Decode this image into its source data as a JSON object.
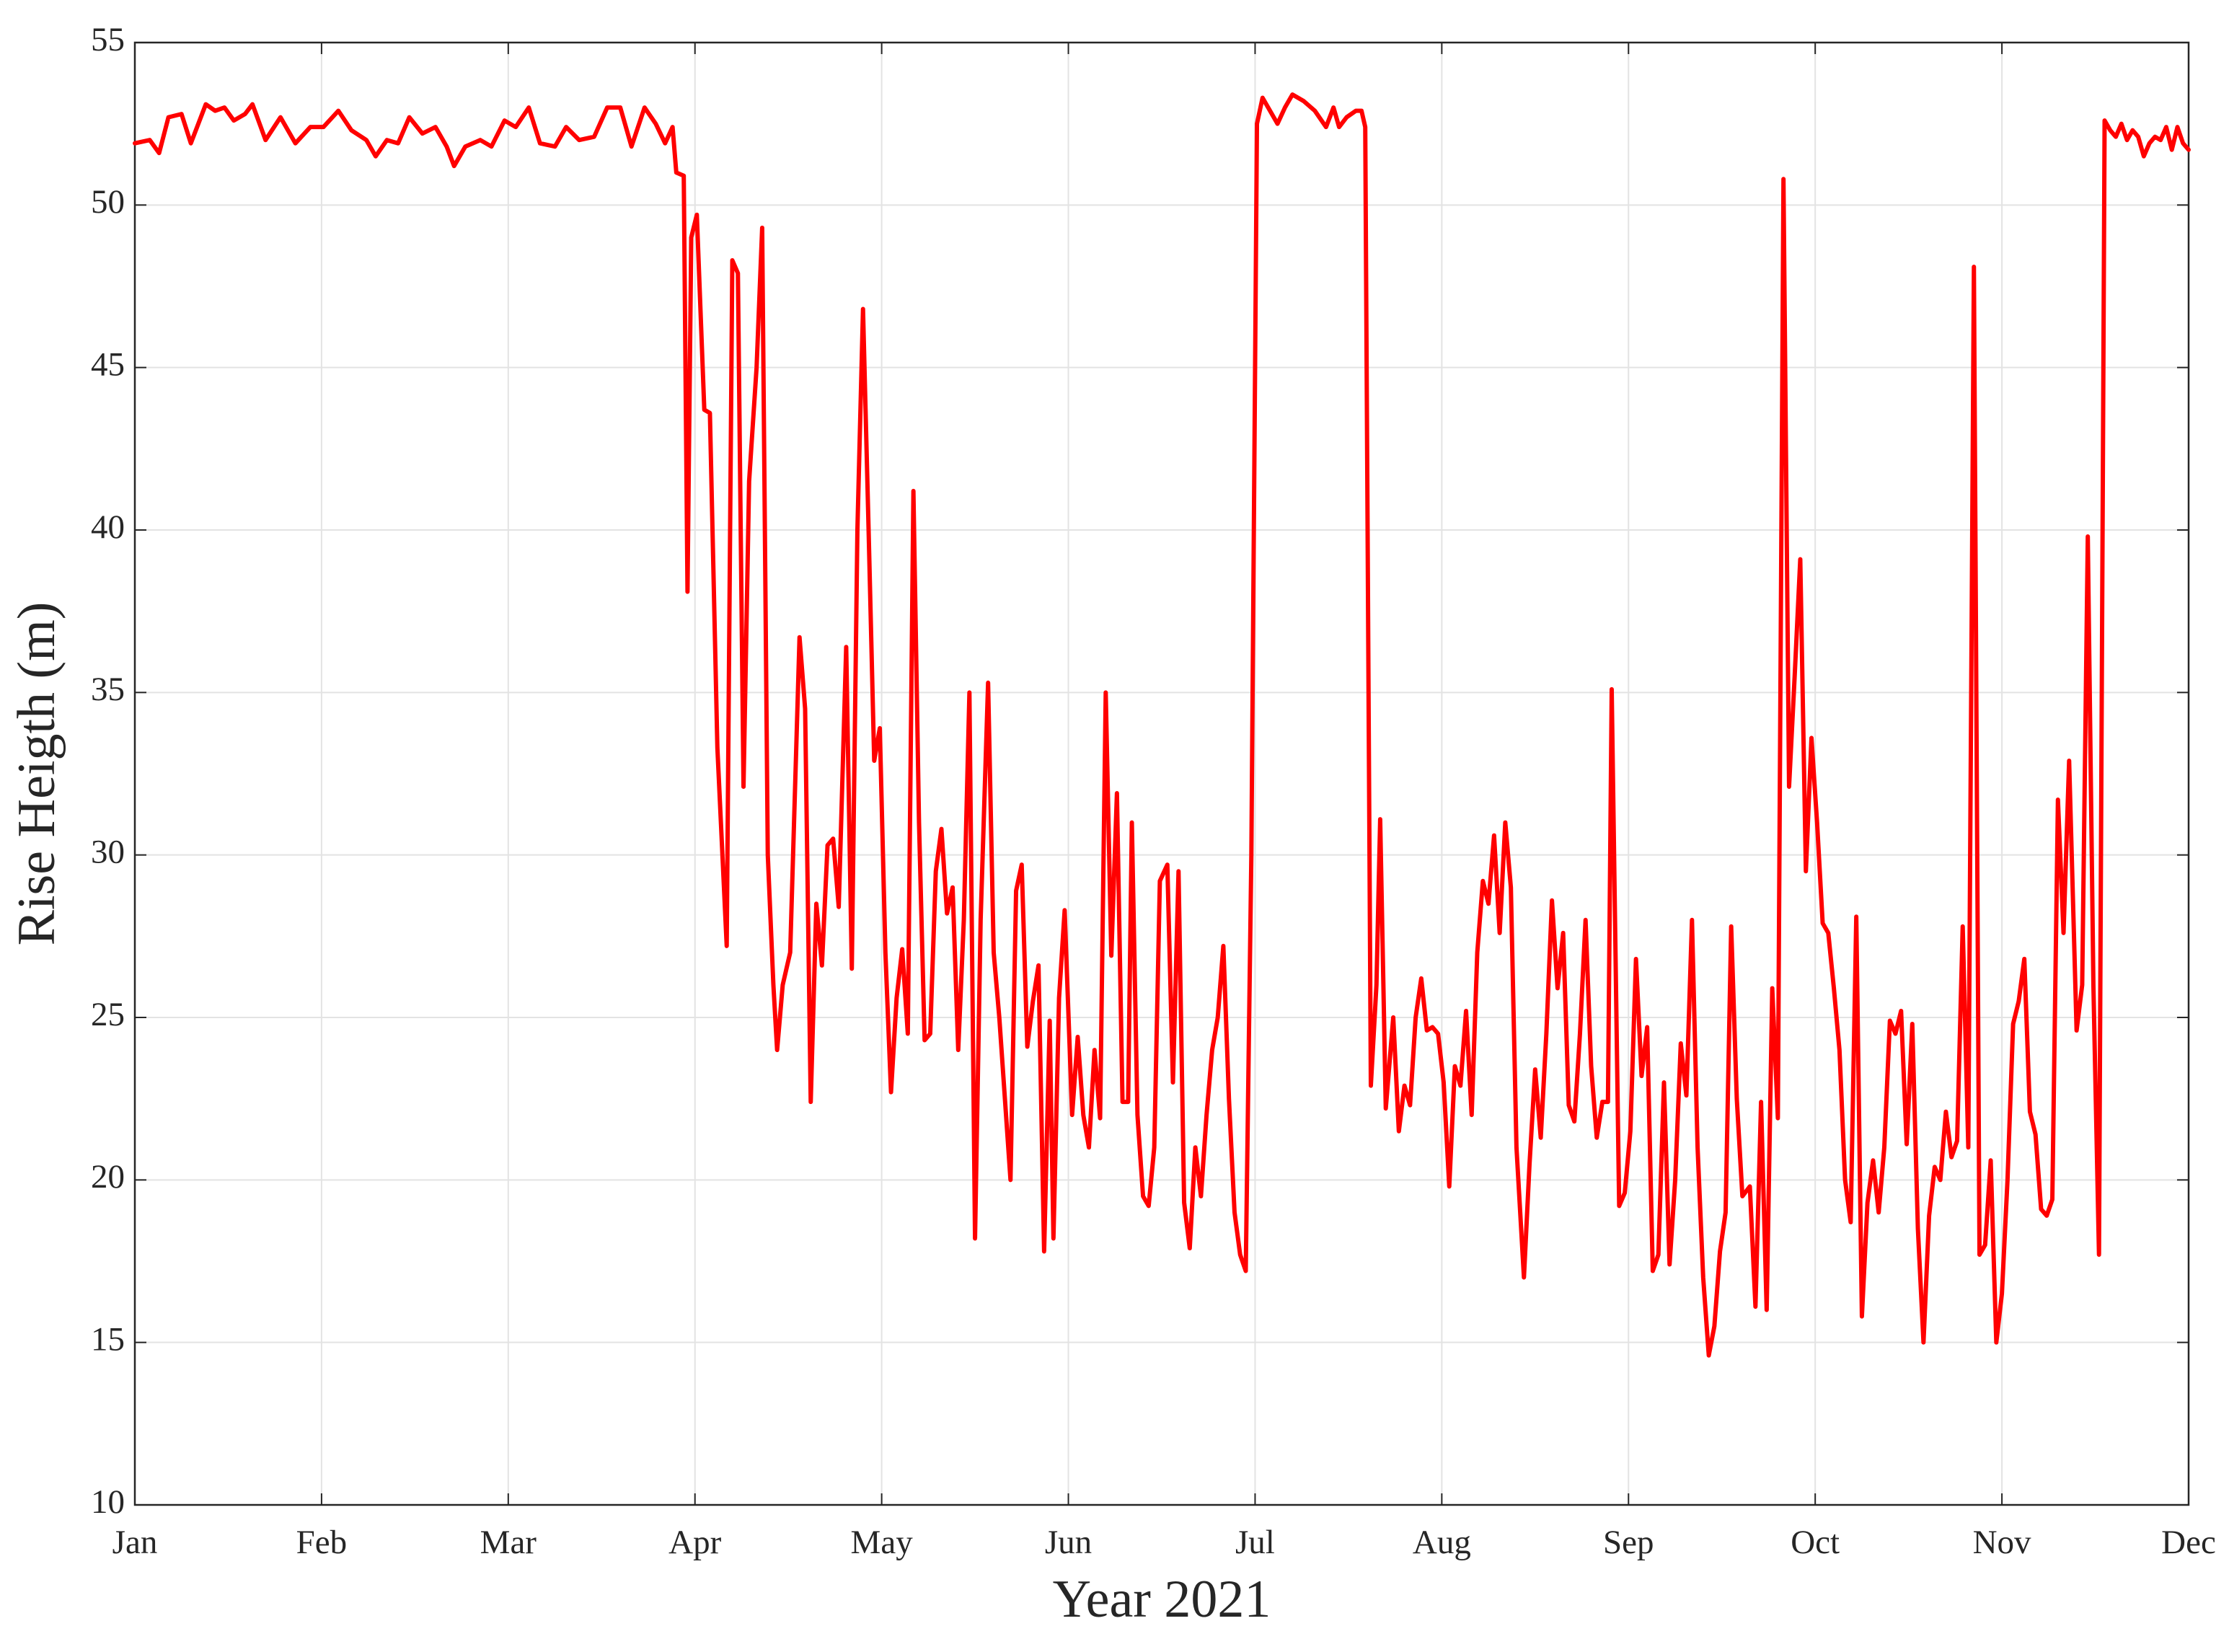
{
  "chart_data": {
    "type": "line",
    "xlabel": "Year 2021",
    "ylabel": "Rise Heigth (m)",
    "color": "#ff0000",
    "grid": true,
    "xlim": [
      0,
      11
    ],
    "ylim": [
      10,
      55
    ],
    "xticks": [
      {
        "value": 0,
        "label": "Jan"
      },
      {
        "value": 1,
        "label": "Feb"
      },
      {
        "value": 2,
        "label": "Mar"
      },
      {
        "value": 3,
        "label": "Apr"
      },
      {
        "value": 4,
        "label": "May"
      },
      {
        "value": 5,
        "label": "Jun"
      },
      {
        "value": 6,
        "label": "Jul"
      },
      {
        "value": 7,
        "label": "Aug"
      },
      {
        "value": 8,
        "label": "Sep"
      },
      {
        "value": 9,
        "label": "Oct"
      },
      {
        "value": 10,
        "label": "Nov"
      },
      {
        "value": 11,
        "label": "Dec"
      }
    ],
    "yticks": [
      10,
      15,
      20,
      25,
      30,
      35,
      40,
      45,
      50,
      55
    ],
    "x": [
      0,
      0.08,
      0.13,
      0.18,
      0.25,
      0.3,
      0.38,
      0.43,
      0.48,
      0.53,
      0.59,
      0.63,
      0.7,
      0.78,
      0.86,
      0.94,
      1.01,
      1.09,
      1.16,
      1.24,
      1.29,
      1.35,
      1.41,
      1.47,
      1.54,
      1.61,
      1.67,
      1.71,
      1.77,
      1.85,
      1.91,
      1.98,
      2.04,
      2.11,
      2.17,
      2.25,
      2.31,
      2.38,
      2.46,
      2.53,
      2.6,
      2.66,
      2.73,
      2.79,
      2.84,
      2.88,
      2.9,
      2.94,
      2.96,
      2.98,
      3.01,
      3.05,
      3.08,
      3.12,
      3.17,
      3.2,
      3.23,
      3.26,
      3.29,
      3.33,
      3.36,
      3.39,
      3.42,
      3.44,
      3.47,
      3.51,
      3.56,
      3.59,
      3.62,
      3.65,
      3.68,
      3.71,
      3.74,
      3.77,
      3.81,
      3.84,
      3.87,
      3.9,
      3.93,
      3.96,
      3.99,
      4.02,
      4.05,
      4.08,
      4.11,
      4.14,
      4.17,
      4.2,
      4.23,
      4.26,
      4.29,
      4.32,
      4.35,
      4.38,
      4.41,
      4.44,
      4.47,
      4.5,
      4.53,
      4.57,
      4.6,
      4.63,
      4.66,
      4.69,
      4.72,
      4.75,
      4.78,
      4.81,
      4.84,
      4.87,
      4.9,
      4.92,
      4.95,
      4.98,
      5.02,
      5.05,
      5.08,
      5.11,
      5.14,
      5.17,
      5.2,
      5.23,
      5.26,
      5.29,
      5.32,
      5.34,
      5.37,
      5.4,
      5.43,
      5.46,
      5.49,
      5.53,
      5.56,
      5.59,
      5.62,
      5.65,
      5.68,
      5.71,
      5.74,
      5.77,
      5.8,
      5.83,
      5.86,
      5.89,
      5.92,
      5.95,
      5.98,
      6.01,
      6.04,
      6.07,
      6.12,
      6.16,
      6.2,
      6.26,
      6.32,
      6.38,
      6.42,
      6.45,
      6.49,
      6.54,
      6.57,
      6.59,
      6.62,
      6.65,
      6.67,
      6.7,
      6.74,
      6.77,
      6.8,
      6.83,
      6.86,
      6.89,
      6.92,
      6.95,
      6.98,
      7.01,
      7.04,
      7.07,
      7.1,
      7.13,
      7.16,
      7.19,
      7.22,
      7.25,
      7.28,
      7.31,
      7.34,
      7.37,
      7.4,
      7.44,
      7.47,
      7.5,
      7.53,
      7.56,
      7.59,
      7.62,
      7.65,
      7.68,
      7.71,
      7.74,
      7.77,
      7.8,
      7.83,
      7.86,
      7.89,
      7.91,
      7.95,
      7.98,
      8.01,
      8.04,
      8.07,
      8.1,
      8.13,
      8.16,
      8.19,
      8.22,
      8.25,
      8.28,
      8.31,
      8.34,
      8.37,
      8.4,
      8.43,
      8.46,
      8.49,
      8.52,
      8.55,
      8.58,
      8.61,
      8.65,
      8.68,
      8.71,
      8.74,
      8.77,
      8.8,
      8.83,
      8.86,
      8.89,
      8.92,
      8.95,
      8.98,
      9.01,
      9.04,
      9.07,
      9.1,
      9.13,
      9.16,
      9.19,
      9.22,
      9.25,
      9.28,
      9.31,
      9.34,
      9.37,
      9.4,
      9.43,
      9.46,
      9.49,
      9.52,
      9.55,
      9.58,
      9.61,
      9.64,
      9.67,
      9.7,
      9.73,
      9.76,
      9.79,
      9.82,
      9.85,
      9.88,
      9.91,
      9.94,
      9.97,
      10.0,
      10.03,
      10.06,
      10.09,
      10.12,
      10.15,
      10.18,
      10.21,
      10.24,
      10.27,
      10.3,
      10.33,
      10.36,
      10.4,
      10.43,
      10.46,
      10.49,
      10.52,
      10.55,
      10.58,
      10.61,
      10.64,
      10.67,
      10.7,
      10.73,
      10.76,
      10.79,
      10.82,
      10.85,
      10.88,
      10.91,
      10.94,
      10.97,
      11
    ],
    "values": [
      51.9,
      52.0,
      51.6,
      52.7,
      52.8,
      51.9,
      53.1,
      52.9,
      53.0,
      52.6,
      52.8,
      53.1,
      52.0,
      52.7,
      51.9,
      52.4,
      52.4,
      52.9,
      52.3,
      52.0,
      51.5,
      52.0,
      51.9,
      52.7,
      52.2,
      52.4,
      51.8,
      51.2,
      51.8,
      52.0,
      51.8,
      52.6,
      52.4,
      53.0,
      51.9,
      51.8,
      52.4,
      52.0,
      52.1,
      53.0,
      53.0,
      51.8,
      53.0,
      52.5,
      51.9,
      52.4,
      51.0,
      50.9,
      38.1,
      49.0,
      49.7,
      43.7,
      43.6,
      33.3,
      27.2,
      48.3,
      47.9,
      32.1,
      41.5,
      45.0,
      49.3,
      30.0,
      26.0,
      24.0,
      26.0,
      27.0,
      36.7,
      34.5,
      22.4,
      28.5,
      26.6,
      30.3,
      30.5,
      28.4,
      36.4,
      26.5,
      40.0,
      46.8,
      40.0,
      32.9,
      33.9,
      27.0,
      22.7,
      25.6,
      27.1,
      24.5,
      41.2,
      31.0,
      24.3,
      24.5,
      29.5,
      30.8,
      28.2,
      29.0,
      24.0,
      28.0,
      35.0,
      18.2,
      28.0,
      35.3,
      27.0,
      25.0,
      22.5,
      20.0,
      28.9,
      29.7,
      24.1,
      25.5,
      26.6,
      17.8,
      24.9,
      18.2,
      25.6,
      28.3,
      22.0,
      24.4,
      22.0,
      21.0,
      24.0,
      21.9,
      35.0,
      26.9,
      31.9,
      22.4,
      22.4,
      31.0,
      22.0,
      19.5,
      19.2,
      21.0,
      29.2,
      29.7,
      23.0,
      29.5,
      19.3,
      17.9,
      21.0,
      19.5,
      22.0,
      24.0,
      25.0,
      27.2,
      22.5,
      19.0,
      17.7,
      17.2,
      30.0,
      52.5,
      53.3,
      53.0,
      52.5,
      53.0,
      53.4,
      53.2,
      52.9,
      52.4,
      53.0,
      52.4,
      52.7,
      52.9,
      52.9,
      52.4,
      22.9,
      26.0,
      31.1,
      22.2,
      25.0,
      21.5,
      22.9,
      22.3,
      25.0,
      26.2,
      24.6,
      24.7,
      24.5,
      23.0,
      19.8,
      23.5,
      22.9,
      25.2,
      22.0,
      27.0,
      29.2,
      28.5,
      30.6,
      27.6,
      31.0,
      29.0,
      21.0,
      17.0,
      20.5,
      23.4,
      21.3,
      24.5,
      28.6,
      25.9,
      27.6,
      22.3,
      21.8,
      24.5,
      28.0,
      23.5,
      21.3,
      22.4,
      22.4,
      35.1,
      19.2,
      19.6,
      21.5,
      26.8,
      23.2,
      24.7,
      17.2,
      17.7,
      23.0,
      17.4,
      20.0,
      24.2,
      22.6,
      28.0,
      21.0,
      17.0,
      14.6,
      15.5,
      17.8,
      19.0,
      27.8,
      22.5,
      19.5,
      19.8,
      16.1,
      22.4,
      16.0,
      25.9,
      21.9,
      50.8,
      32.1,
      35.5,
      39.1,
      29.5,
      33.6,
      31.0,
      27.9,
      27.6,
      25.9,
      24.0,
      20.0,
      18.7,
      28.1,
      15.8,
      19.3,
      20.6,
      19.0,
      21.0,
      24.9,
      24.5,
      25.2,
      21.1,
      24.8,
      18.5,
      15.0,
      18.9,
      20.4,
      20.0,
      22.1,
      20.7,
      21.2,
      27.8,
      21.0,
      48.1,
      17.7,
      18.0,
      20.6,
      15.0,
      16.5,
      20.0,
      24.8,
      25.5,
      26.8,
      22.1,
      21.4,
      19.1,
      18.9,
      19.4,
      31.7,
      27.6,
      32.9,
      24.6,
      26.0,
      39.8,
      26.0,
      17.7,
      52.6,
      52.3,
      52.1,
      52.5,
      52.0,
      52.3,
      52.1,
      51.5,
      51.9,
      52.1,
      52.0,
      52.4,
      51.7,
      52.4,
      51.9,
      51.7
    ]
  }
}
